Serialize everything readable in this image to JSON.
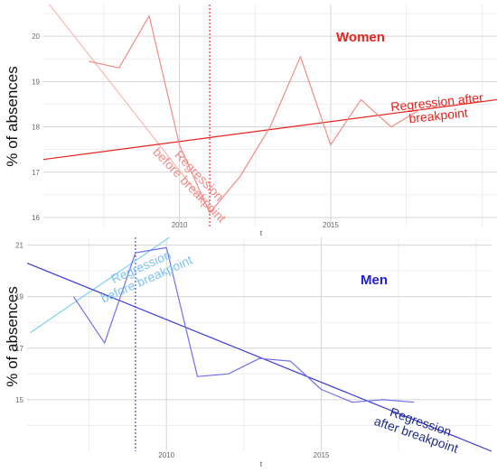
{
  "chart_data": [
    {
      "type": "line",
      "title": "Women",
      "xlabel": "t",
      "ylabel": "% of absences",
      "xlim": [
        2005.5,
        2020.5
      ],
      "ylim": [
        15.8,
        20.7
      ],
      "x_ticks": [
        2010,
        2015
      ],
      "x_tick_labels": [
        "2010",
        "2015"
      ],
      "y_ticks": [
        16,
        17,
        18,
        19,
        20
      ],
      "y_tick_labels": [
        "16",
        "17",
        "18",
        "19",
        "20"
      ],
      "grid": true,
      "breakpoint_x": 2011,
      "colors": {
        "title": "#e8231d",
        "series": "#f08b85",
        "breakpoint": "#e8231d",
        "reg_after": "#e8231d",
        "reg_before": "#f6b8b2",
        "annotation": "#e8231d",
        "annotation_before": "#f08b85"
      },
      "series": [
        {
          "x": [
            2007,
            2008,
            2009,
            2010,
            2011,
            2012,
            2013,
            2014,
            2015,
            2016,
            2017,
            2018
          ],
          "values": [
            19.45,
            19.3,
            20.45,
            17.6,
            16.1,
            16.9,
            18.0,
            19.55,
            17.6,
            18.6,
            18.0,
            18.4
          ]
        }
      ],
      "regression_before": {
        "x": [
          2005.7,
          2011.1
        ],
        "y": [
          20.7,
          16.1
        ]
      },
      "regression_after": {
        "x": [
          2005.5,
          2020.5
        ],
        "y": [
          17.28,
          18.6
        ]
      },
      "annotations": [
        {
          "key": "after",
          "lines": [
            "Regression after",
            "breakpoint"
          ]
        },
        {
          "key": "before",
          "lines": [
            "Regression",
            "before breakpoint"
          ]
        }
      ]
    },
    {
      "type": "line",
      "title": "Men",
      "xlabel": "t",
      "ylabel": "% of absences",
      "xlim": [
        2005.5,
        2020.5
      ],
      "ylim": [
        13.0,
        21.3
      ],
      "x_ticks": [
        2010,
        2015
      ],
      "x_tick_labels": [
        "2010",
        "2015"
      ],
      "y_ticks": [
        15,
        17,
        19,
        21
      ],
      "y_tick_labels": [
        "15",
        "17",
        "19",
        "21"
      ],
      "grid": true,
      "breakpoint_x": 2009,
      "colors": {
        "title": "#1f1fe0",
        "series": "#7070ee",
        "breakpoint": "#3a3ad6",
        "reg_after": "#3a3ad6",
        "reg_before": "#7fd0f5",
        "annotation": "#1f2d8a",
        "annotation_before": "#7fc4ee"
      },
      "series": [
        {
          "x": [
            2007,
            2008,
            2009,
            2010,
            2011,
            2012,
            2013,
            2014,
            2015,
            2016,
            2017,
            2018
          ],
          "values": [
            19.0,
            17.2,
            20.7,
            20.9,
            15.9,
            16.0,
            16.6,
            16.5,
            15.4,
            14.9,
            15.0,
            14.9
          ]
        }
      ],
      "regression_before": {
        "x": [
          2005.6,
          2010.1
        ],
        "y": [
          17.6,
          21.3
        ]
      },
      "regression_after": {
        "x": [
          2005.5,
          2020.5
        ],
        "y": [
          20.3,
          13.0
        ]
      },
      "annotations": [
        {
          "key": "after",
          "lines": [
            "Regression",
            "after breakpoint"
          ]
        },
        {
          "key": "before",
          "lines": [
            "Regression",
            "before breakpoint"
          ]
        }
      ]
    }
  ]
}
